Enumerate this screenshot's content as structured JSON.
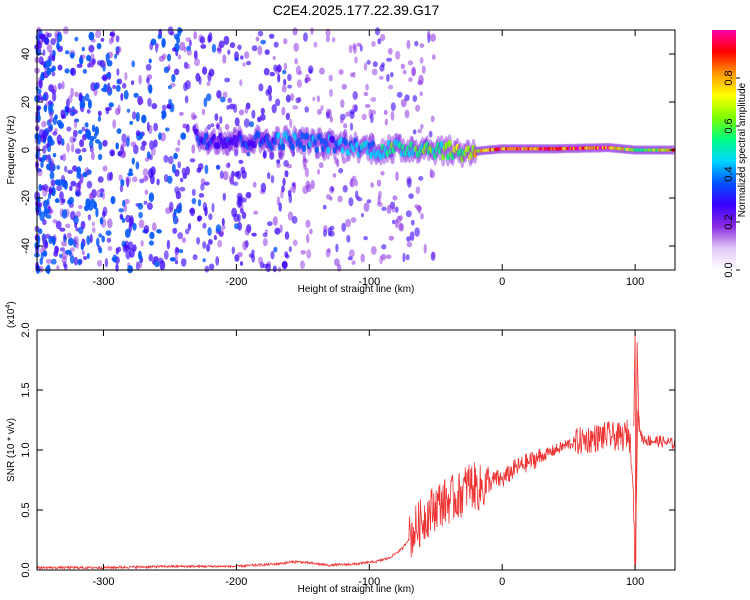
{
  "title": "C2E4.2025.177.22.39.G17",
  "chart_data": [
    {
      "type": "heatmap",
      "xlabel": "Height of straight line (km)",
      "ylabel": "Frequency (Hz)",
      "xlim": [
        -350,
        130
      ],
      "ylim": [
        -50,
        50
      ],
      "x_ticks": [
        -300,
        -200,
        -100,
        0,
        100
      ],
      "y_ticks": [
        -40,
        -20,
        0,
        20,
        40
      ],
      "colorbar_label": "Normalized spectral amplitude",
      "colorbar_ticks": [
        0.0,
        0.2,
        0.4,
        0.6,
        0.8
      ],
      "colorbar_range": [
        0,
        1
      ],
      "colormap": [
        "#ffffff",
        "#e0c8f5",
        "#8a2be2",
        "#3a00ff",
        "#0055ff",
        "#00d7ff",
        "#00ff7f",
        "#7fff00",
        "#ffff00",
        "#ff9900",
        "#ff0000",
        "#ff00aa"
      ],
      "ridge": [
        {
          "x": -230,
          "y": 5,
          "amp": 0.35
        },
        {
          "x": -200,
          "y": 4,
          "amp": 0.3
        },
        {
          "x": -160,
          "y": 4,
          "amp": 0.45
        },
        {
          "x": -120,
          "y": 2,
          "amp": 0.4
        },
        {
          "x": -90,
          "y": 0,
          "amp": 0.55
        },
        {
          "x": -60,
          "y": 1,
          "amp": 0.6
        },
        {
          "x": -30,
          "y": -1,
          "amp": 0.7
        },
        {
          "x": 0,
          "y": 0.5,
          "amp": 0.95
        },
        {
          "x": 40,
          "y": 0.5,
          "amp": 0.9
        },
        {
          "x": 80,
          "y": 1,
          "amp": 0.9
        },
        {
          "x": 100,
          "y": 0,
          "amp": 0.6
        },
        {
          "x": 130,
          "y": 0,
          "amp": 0.85
        }
      ]
    },
    {
      "type": "line",
      "xlabel": "Height of straight line (km)",
      "ylabel": "SNR (10 * v/v)",
      "y_multiplier": "(x10",
      "y_multiplier_exp": "4",
      "y_multiplier_close": ")",
      "xlim": [
        -350,
        130
      ],
      "ylim": [
        0,
        2.0
      ],
      "x_ticks": [
        -300,
        -200,
        -100,
        0,
        100
      ],
      "y_ticks": [
        0.0,
        0.5,
        1.0,
        1.5,
        2.0
      ],
      "series": [
        {
          "color": "#ee3333",
          "x": [
            -350,
            -300,
            -250,
            -200,
            -170,
            -155,
            -130,
            -110,
            -95,
            -85,
            -75,
            -65,
            -55,
            -48,
            -40,
            -32,
            -25,
            -18,
            -12,
            -5,
            0,
            10,
            20,
            30,
            40,
            50,
            60,
            70,
            80,
            90,
            95,
            98,
            100,
            102,
            105,
            110,
            120,
            130
          ],
          "y": [
            0.02,
            0.02,
            0.03,
            0.03,
            0.05,
            0.07,
            0.04,
            0.05,
            0.07,
            0.1,
            0.18,
            0.35,
            0.48,
            0.55,
            0.58,
            0.62,
            0.72,
            0.68,
            0.7,
            0.76,
            0.75,
            0.85,
            0.9,
            0.95,
            1.0,
            1.05,
            1.08,
            1.1,
            1.12,
            1.1,
            1.15,
            0.9,
            0.02,
            1.3,
            1.1,
            1.08,
            1.07,
            1.05
          ]
        }
      ]
    }
  ]
}
